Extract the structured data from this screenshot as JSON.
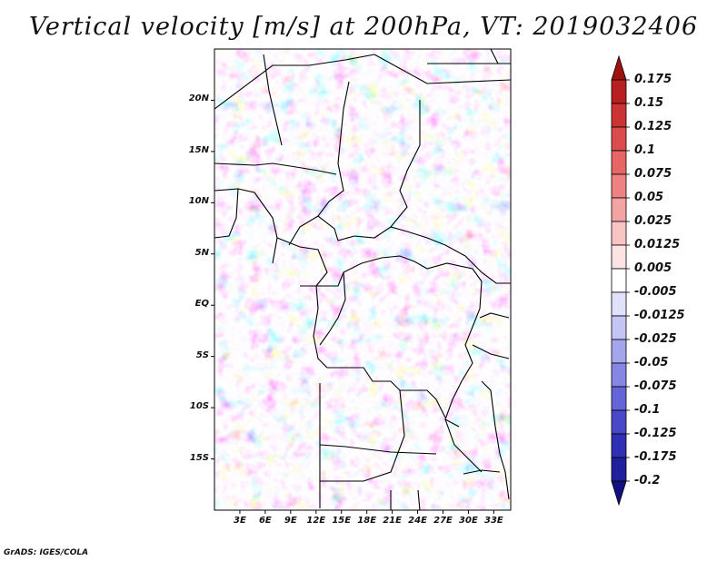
{
  "title": "Vertical velocity [m/s] at 200hPa, VT: 2019032406",
  "credit": "GrADS: IGES/COLA",
  "map": {
    "lat_labels": [
      "20N",
      "15N",
      "10N",
      "5N",
      "EQ",
      "5S",
      "10S",
      "15S"
    ],
    "lon_labels": [
      "3E",
      "6E",
      "9E",
      "12E",
      "15E",
      "18E",
      "21E",
      "24E",
      "27E",
      "30E",
      "33E"
    ],
    "lon_range": [
      0,
      35
    ],
    "lat_range": [
      -20,
      25
    ]
  },
  "colorbar": {
    "labels": [
      "0.175",
      "0.15",
      "0.125",
      "0.1",
      "0.075",
      "0.05",
      "0.025",
      "0.0125",
      "0.005",
      "-0.005",
      "-0.0125",
      "-0.025",
      "-0.05",
      "-0.075",
      "-0.1",
      "-0.125",
      "-0.175",
      "-0.2"
    ],
    "colors": [
      "#a01010",
      "#b82020",
      "#cc3333",
      "#dd4c4c",
      "#e66666",
      "#ee8282",
      "#f4a3a3",
      "#f9c4c4",
      "#fde3e3",
      "#ffffff",
      "#e1e1fb",
      "#c4c4f5",
      "#a5a5ee",
      "#8686e4",
      "#6565d8",
      "#4848c8",
      "#3030b4",
      "#20209c",
      "#101080"
    ],
    "arrow_top_color": "#a01010",
    "arrow_bottom_color": "#101080"
  }
}
